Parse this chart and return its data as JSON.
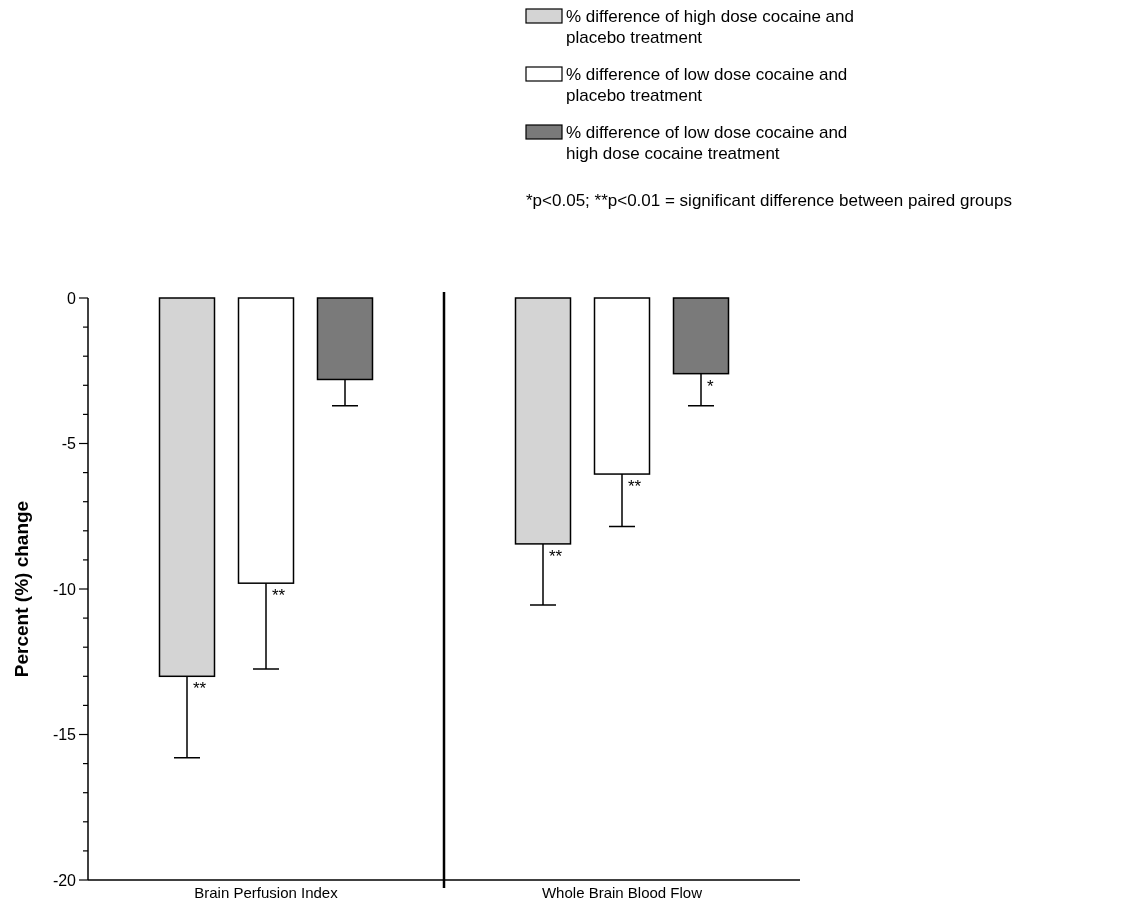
{
  "chart_data": {
    "type": "bar",
    "ylabel": "Percent (%) change",
    "categories": [
      "Brain Perfusion Index",
      "Whole Brain Blood Flow"
    ],
    "series": [
      {
        "name": "% difference of high dose cocaine and placebo treatment",
        "color": "#d4d4d4",
        "values": [
          -13.0,
          -8.45
        ],
        "errors": [
          [
            -15.8,
            -13.0
          ],
          [
            -10.55,
            -8.45
          ]
        ],
        "value_labels": [
          "**",
          "**"
        ]
      },
      {
        "name": "% difference of low dose cocaine and placebo treatment",
        "color": "#ffffff",
        "values": [
          -9.8,
          -6.05
        ],
        "errors": [
          [
            -12.75,
            -9.8
          ],
          [
            -7.85,
            -6.05
          ]
        ],
        "value_labels": [
          "**",
          "**"
        ]
      },
      {
        "name": "% difference of low dose cocaine and high dose cocaine treatment",
        "color": "#7a7a7a",
        "values": [
          -2.8,
          -2.6
        ],
        "errors": [
          [
            -3.7,
            -2.8
          ],
          [
            -3.7,
            -2.6
          ]
        ],
        "value_labels": [
          null,
          "*"
        ]
      }
    ],
    "ylim": [
      -20,
      0
    ],
    "yticks": [
      -20,
      {
        "value": -19,
        "label": null
      },
      {
        "value": -18,
        "label": null
      },
      {
        "value": -17,
        "label": null
      },
      {
        "value": -16,
        "label": null
      },
      -15,
      {
        "value": -14,
        "label": null
      },
      {
        "value": -13,
        "label": null
      },
      {
        "value": -12,
        "label": null
      },
      {
        "value": -11,
        "label": null
      },
      -10,
      {
        "value": -9,
        "label": null
      },
      {
        "value": -8,
        "label": null
      },
      {
        "value": -7,
        "label": null
      },
      {
        "value": -6,
        "label": null
      },
      -5,
      {
        "value": -4,
        "label": null
      },
      {
        "value": -3,
        "label": null
      },
      {
        "value": -2,
        "label": null
      },
      {
        "value": -1,
        "label": null
      },
      0
    ],
    "legend": "top right",
    "annotations": [
      "*p<0.05; **p<0.01 = significant difference between paired groups"
    ]
  }
}
